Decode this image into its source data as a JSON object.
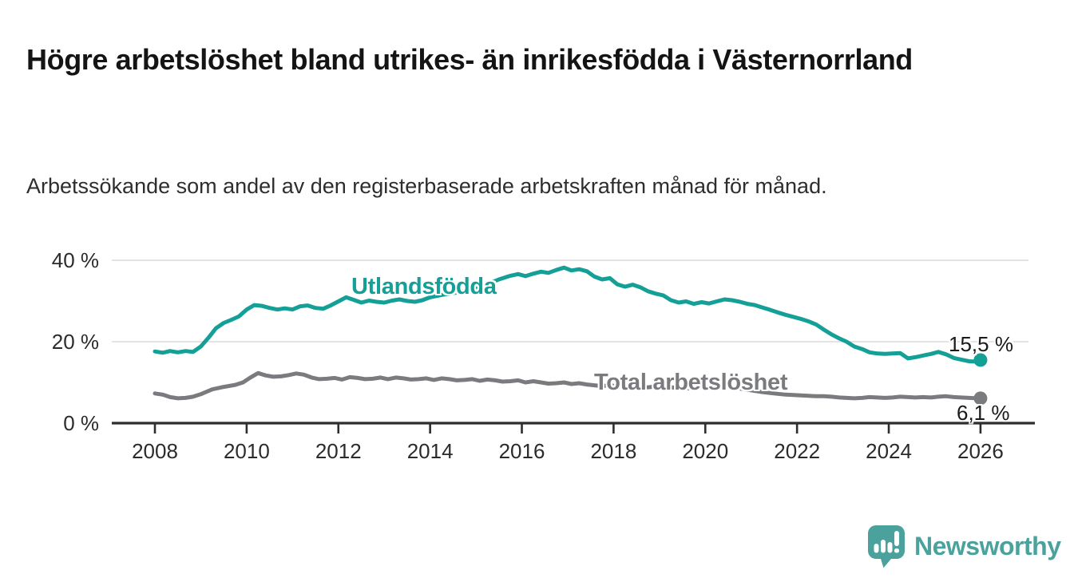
{
  "header": {
    "title": "Högre arbetslöshet bland utrikes- än inrikesfödda i Västernorrland",
    "subtitle": "Arbetssökande som andel av den registerbaserade arbetskraften månad för månad."
  },
  "footer": {
    "logo_text": "Newsworthy"
  },
  "colors": {
    "accent_teal": "#14A096",
    "accent_gray": "#7A7B7E",
    "axis": "#2E2E2E",
    "gridline": "#DCDCDC",
    "text_dark": "#1A1A1A",
    "logo_teal": "#4BA29C"
  },
  "chart_data": {
    "type": "line",
    "title": "Högre arbetslöshet bland utrikes- än inrikesfödda i Västernorrland",
    "subtitle": "Arbetssökande som andel av den registerbaserade arbetskraften månad för månad.",
    "xlabel": "",
    "ylabel": "",
    "grid": true,
    "legend_position": "inline-labels",
    "x_axis": {
      "ticks": [
        2008,
        2010,
        2012,
        2014,
        2016,
        2018,
        2020,
        2022,
        2024,
        2026
      ],
      "range": [
        2007.06,
        2027.2
      ]
    },
    "y_axis": {
      "ticks": [
        {
          "value": 0,
          "label": "0 %"
        },
        {
          "value": 20,
          "label": "20 %"
        },
        {
          "value": 40,
          "label": "40 %"
        }
      ],
      "gridlines": [
        20,
        40
      ],
      "range": [
        0,
        44
      ]
    },
    "series": [
      {
        "name": "Utlandsfödda",
        "color": "#14A096",
        "end_value": 15.5,
        "end_label": "15,5 %",
        "points": [
          [
            2008.0,
            17.6
          ],
          [
            2008.17,
            17.3
          ],
          [
            2008.33,
            17.7
          ],
          [
            2008.5,
            17.4
          ],
          [
            2008.67,
            17.7
          ],
          [
            2008.83,
            17.5
          ],
          [
            2009.0,
            18.8
          ],
          [
            2009.17,
            21.0
          ],
          [
            2009.33,
            23.3
          ],
          [
            2009.5,
            24.6
          ],
          [
            2009.67,
            25.4
          ],
          [
            2009.83,
            26.2
          ],
          [
            2010.0,
            27.9
          ],
          [
            2010.17,
            29.0
          ],
          [
            2010.33,
            28.8
          ],
          [
            2010.5,
            28.3
          ],
          [
            2010.67,
            27.9
          ],
          [
            2010.83,
            28.2
          ],
          [
            2011.0,
            27.9
          ],
          [
            2011.17,
            28.7
          ],
          [
            2011.33,
            28.9
          ],
          [
            2011.5,
            28.3
          ],
          [
            2011.67,
            28.1
          ],
          [
            2011.83,
            28.9
          ],
          [
            2012.0,
            29.9
          ],
          [
            2012.17,
            30.9
          ],
          [
            2012.33,
            30.3
          ],
          [
            2012.5,
            29.6
          ],
          [
            2012.67,
            30.1
          ],
          [
            2012.83,
            29.8
          ],
          [
            2013.0,
            29.6
          ],
          [
            2013.17,
            30.1
          ],
          [
            2013.33,
            30.4
          ],
          [
            2013.5,
            30.0
          ],
          [
            2013.67,
            29.8
          ],
          [
            2013.83,
            30.2
          ],
          [
            2014.0,
            30.9
          ],
          [
            2014.25,
            31.5
          ],
          [
            2014.5,
            31.9
          ],
          [
            2014.75,
            32.5
          ],
          [
            2015.0,
            33.2
          ],
          [
            2015.25,
            34.1
          ],
          [
            2015.5,
            35.3
          ],
          [
            2015.75,
            36.2
          ],
          [
            2015.92,
            36.6
          ],
          [
            2016.08,
            36.1
          ],
          [
            2016.25,
            36.7
          ],
          [
            2016.42,
            37.2
          ],
          [
            2016.58,
            36.9
          ],
          [
            2016.75,
            37.6
          ],
          [
            2016.92,
            38.2
          ],
          [
            2017.08,
            37.5
          ],
          [
            2017.25,
            37.8
          ],
          [
            2017.42,
            37.3
          ],
          [
            2017.58,
            36.0
          ],
          [
            2017.75,
            35.3
          ],
          [
            2017.92,
            35.6
          ],
          [
            2018.08,
            34.1
          ],
          [
            2018.25,
            33.5
          ],
          [
            2018.42,
            34.0
          ],
          [
            2018.58,
            33.4
          ],
          [
            2018.75,
            32.4
          ],
          [
            2018.92,
            31.8
          ],
          [
            2019.08,
            31.4
          ],
          [
            2019.25,
            30.2
          ],
          [
            2019.42,
            29.6
          ],
          [
            2019.58,
            29.9
          ],
          [
            2019.75,
            29.3
          ],
          [
            2019.92,
            29.7
          ],
          [
            2020.08,
            29.4
          ],
          [
            2020.25,
            29.9
          ],
          [
            2020.42,
            30.4
          ],
          [
            2020.58,
            30.2
          ],
          [
            2020.75,
            29.8
          ],
          [
            2020.92,
            29.3
          ],
          [
            2021.08,
            29.0
          ],
          [
            2021.25,
            28.4
          ],
          [
            2021.42,
            27.8
          ],
          [
            2021.58,
            27.2
          ],
          [
            2021.75,
            26.6
          ],
          [
            2021.92,
            26.1
          ],
          [
            2022.08,
            25.6
          ],
          [
            2022.25,
            25.0
          ],
          [
            2022.42,
            24.2
          ],
          [
            2022.58,
            23.0
          ],
          [
            2022.75,
            21.8
          ],
          [
            2022.92,
            20.8
          ],
          [
            2023.08,
            20.0
          ],
          [
            2023.25,
            18.8
          ],
          [
            2023.42,
            18.2
          ],
          [
            2023.58,
            17.4
          ],
          [
            2023.75,
            17.1
          ],
          [
            2023.92,
            17.0
          ],
          [
            2024.08,
            17.1
          ],
          [
            2024.25,
            17.2
          ],
          [
            2024.42,
            15.9
          ],
          [
            2024.58,
            16.2
          ],
          [
            2024.75,
            16.6
          ],
          [
            2024.92,
            17.0
          ],
          [
            2025.08,
            17.5
          ],
          [
            2025.25,
            16.9
          ],
          [
            2025.42,
            16.0
          ],
          [
            2025.58,
            15.6
          ],
          [
            2025.75,
            15.2
          ],
          [
            2025.92,
            15.1
          ],
          [
            2026.0,
            15.5
          ]
        ]
      },
      {
        "name": "Total arbetslöshet",
        "color": "#7A7B7E",
        "end_value": 6.1,
        "end_label": "6,1 %",
        "points": [
          [
            2008.0,
            7.3
          ],
          [
            2008.17,
            7.0
          ],
          [
            2008.33,
            6.4
          ],
          [
            2008.5,
            6.1
          ],
          [
            2008.67,
            6.2
          ],
          [
            2008.83,
            6.5
          ],
          [
            2009.0,
            7.1
          ],
          [
            2009.25,
            8.3
          ],
          [
            2009.5,
            8.9
          ],
          [
            2009.75,
            9.4
          ],
          [
            2009.92,
            10.0
          ],
          [
            2010.08,
            11.2
          ],
          [
            2010.25,
            12.3
          ],
          [
            2010.42,
            11.7
          ],
          [
            2010.58,
            11.4
          ],
          [
            2010.75,
            11.5
          ],
          [
            2010.92,
            11.8
          ],
          [
            2011.08,
            12.2
          ],
          [
            2011.25,
            11.9
          ],
          [
            2011.42,
            11.2
          ],
          [
            2011.58,
            10.8
          ],
          [
            2011.75,
            10.9
          ],
          [
            2011.92,
            11.1
          ],
          [
            2012.08,
            10.7
          ],
          [
            2012.25,
            11.3
          ],
          [
            2012.42,
            11.1
          ],
          [
            2012.58,
            10.8
          ],
          [
            2012.75,
            10.9
          ],
          [
            2012.92,
            11.2
          ],
          [
            2013.08,
            10.8
          ],
          [
            2013.25,
            11.2
          ],
          [
            2013.42,
            11.0
          ],
          [
            2013.58,
            10.7
          ],
          [
            2013.75,
            10.8
          ],
          [
            2013.92,
            11.0
          ],
          [
            2014.08,
            10.6
          ],
          [
            2014.25,
            11.0
          ],
          [
            2014.42,
            10.8
          ],
          [
            2014.58,
            10.5
          ],
          [
            2014.75,
            10.6
          ],
          [
            2014.92,
            10.8
          ],
          [
            2015.08,
            10.4
          ],
          [
            2015.25,
            10.7
          ],
          [
            2015.42,
            10.5
          ],
          [
            2015.58,
            10.2
          ],
          [
            2015.75,
            10.3
          ],
          [
            2015.92,
            10.5
          ],
          [
            2016.08,
            10.0
          ],
          [
            2016.25,
            10.3
          ],
          [
            2016.42,
            10.0
          ],
          [
            2016.58,
            9.7
          ],
          [
            2016.75,
            9.8
          ],
          [
            2016.92,
            10.0
          ],
          [
            2017.08,
            9.6
          ],
          [
            2017.25,
            9.8
          ],
          [
            2017.42,
            9.5
          ],
          [
            2017.58,
            9.3
          ],
          [
            2017.75,
            9.1
          ],
          [
            2017.92,
            9.3
          ],
          [
            2018.08,
            9.0
          ],
          [
            2018.25,
            9.1
          ],
          [
            2018.42,
            8.9
          ],
          [
            2018.58,
            8.7
          ],
          [
            2018.75,
            8.8
          ],
          [
            2018.92,
            9.0
          ],
          [
            2019.08,
            8.7
          ],
          [
            2019.25,
            8.8
          ],
          [
            2019.42,
            8.6
          ],
          [
            2019.58,
            8.5
          ],
          [
            2019.75,
            8.6
          ],
          [
            2019.92,
            8.8
          ],
          [
            2020.08,
            8.9
          ],
          [
            2020.25,
            9.2
          ],
          [
            2020.42,
            9.0
          ],
          [
            2020.58,
            8.8
          ],
          [
            2020.75,
            8.5
          ],
          [
            2020.92,
            8.2
          ],
          [
            2021.08,
            7.9
          ],
          [
            2021.25,
            7.6
          ],
          [
            2021.42,
            7.4
          ],
          [
            2021.58,
            7.2
          ],
          [
            2021.75,
            7.0
          ],
          [
            2021.92,
            6.9
          ],
          [
            2022.08,
            6.8
          ],
          [
            2022.25,
            6.7
          ],
          [
            2022.42,
            6.6
          ],
          [
            2022.58,
            6.6
          ],
          [
            2022.75,
            6.5
          ],
          [
            2022.92,
            6.3
          ],
          [
            2023.08,
            6.2
          ],
          [
            2023.25,
            6.1
          ],
          [
            2023.42,
            6.2
          ],
          [
            2023.58,
            6.4
          ],
          [
            2023.75,
            6.3
          ],
          [
            2023.92,
            6.2
          ],
          [
            2024.08,
            6.3
          ],
          [
            2024.25,
            6.5
          ],
          [
            2024.42,
            6.4
          ],
          [
            2024.58,
            6.3
          ],
          [
            2024.75,
            6.4
          ],
          [
            2024.92,
            6.3
          ],
          [
            2025.08,
            6.5
          ],
          [
            2025.25,
            6.6
          ],
          [
            2025.42,
            6.4
          ],
          [
            2025.58,
            6.3
          ],
          [
            2025.75,
            6.2
          ],
          [
            2025.92,
            6.1
          ],
          [
            2026.0,
            6.1
          ]
        ]
      }
    ]
  }
}
